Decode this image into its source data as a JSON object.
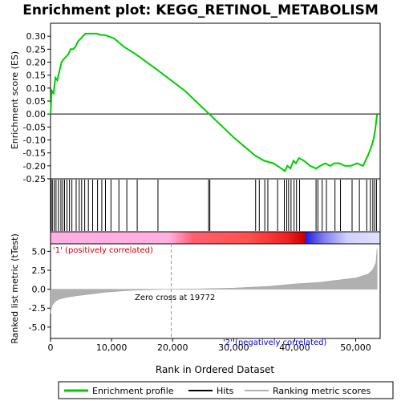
{
  "chart_data": [
    {
      "type": "line",
      "title": "Enrichment plot: KEGG_RETINOL_METABOLISM",
      "ylabel": "Enrichment score (ES)",
      "xlim": [
        0,
        54000
      ],
      "ylim": [
        -0.25,
        0.35
      ],
      "yticks": [
        -0.25,
        -0.2,
        -0.15,
        -0.1,
        -0.05,
        0.0,
        0.05,
        0.1,
        0.15,
        0.2,
        0.25,
        0.3
      ],
      "ytick_labels": [
        "-0.25",
        "-0.20",
        "-0.15",
        "-0.10",
        "-0.05",
        "0.00",
        "0.05",
        "0.10",
        "0.15",
        "0.20",
        "0.25",
        "0.30"
      ],
      "series": [
        {
          "name": "Enrichment profile",
          "color": "#00cc00",
          "x": [
            0,
            200,
            500,
            800,
            1100,
            1500,
            1800,
            2100,
            2500,
            2900,
            3300,
            3700,
            4100,
            4500,
            4900,
            5300,
            5700,
            6100,
            6500,
            7000,
            7600,
            8200,
            8800,
            9500,
            10500,
            12000,
            14000,
            17500,
            22000,
            26000,
            30000,
            33500,
            35000,
            36500,
            37500,
            38400,
            38800,
            39300,
            39800,
            40200,
            40700,
            41500,
            42500,
            43500,
            44200,
            45000,
            45800,
            46500,
            47300,
            48200,
            49200,
            50200,
            51200,
            52000,
            52500,
            52900,
            53200,
            53500
          ],
          "y": [
            0.0,
            0.09,
            0.08,
            0.14,
            0.13,
            0.17,
            0.2,
            0.21,
            0.22,
            0.23,
            0.25,
            0.25,
            0.26,
            0.28,
            0.29,
            0.3,
            0.31,
            0.31,
            0.31,
            0.31,
            0.31,
            0.305,
            0.305,
            0.3,
            0.29,
            0.26,
            0.23,
            0.17,
            0.09,
            0.0,
            -0.09,
            -0.16,
            -0.18,
            -0.19,
            -0.205,
            -0.22,
            -0.2,
            -0.21,
            -0.18,
            -0.19,
            -0.17,
            -0.18,
            -0.2,
            -0.21,
            -0.2,
            -0.19,
            -0.2,
            -0.19,
            -0.19,
            -0.2,
            -0.2,
            -0.19,
            -0.2,
            -0.16,
            -0.13,
            -0.1,
            -0.06,
            0.0
          ]
        }
      ],
      "hits": [
        100,
        300,
        600,
        900,
        1300,
        1700,
        2000,
        2300,
        2700,
        3100,
        3500,
        4200,
        4700,
        5100,
        5600,
        6200,
        6900,
        7700,
        8400,
        9000,
        9900,
        11200,
        12500,
        14200,
        17600,
        25900,
        26100,
        33600,
        34200,
        35100,
        35600,
        37200,
        38300,
        38700,
        39000,
        39400,
        39900,
        40300,
        40800,
        43500,
        43800,
        44500,
        45200,
        46600,
        47500,
        49400,
        50600,
        51800,
        52400,
        52800,
        53100,
        53400
      ]
    },
    {
      "type": "area",
      "ylabel": "Ranked list metric (tTest)",
      "xlabel": "Rank in Ordered Dataset",
      "xlim": [
        0,
        54000
      ],
      "ylim": [
        -6.5,
        6.0
      ],
      "xticks": [
        0,
        10000,
        20000,
        30000,
        40000,
        50000
      ],
      "xtick_labels": [
        "0",
        "10,000",
        "20,000",
        "30,000",
        "40,000",
        "50,000"
      ],
      "yticks": [
        -5.0,
        -2.5,
        0.0,
        2.5,
        5.0
      ],
      "ytick_labels": [
        "-5.0",
        "-2.5",
        "0.0",
        "2.5",
        "5.0"
      ],
      "series": [
        {
          "name": "Ranking metric scores",
          "color": "#b0b0b0",
          "x": [
            0,
            100,
            300,
            600,
            1000,
            1500,
            2500,
            4000,
            6000,
            9000,
            13000,
            17000,
            19772,
            24000,
            30000,
            36000,
            40000,
            44000,
            47000,
            50000,
            52000,
            52800,
            53300,
            53500
          ],
          "y": [
            -3.2,
            -2.6,
            -2.1,
            -1.8,
            -1.5,
            -1.3,
            -1.1,
            -0.9,
            -0.7,
            -0.4,
            -0.15,
            -0.05,
            0.0,
            0.05,
            0.15,
            0.4,
            0.7,
            0.9,
            1.2,
            1.5,
            2.0,
            2.6,
            3.5,
            5.4
          ]
        }
      ],
      "annotations": [
        "'1' (positively correlated)",
        "Zero cross at 19772",
        "'2' (negatively correlated)"
      ]
    }
  ],
  "legend": {
    "items": [
      {
        "label": "Enrichment profile",
        "color": "#00cc00"
      },
      {
        "label": "Hits",
        "color": "#000000"
      },
      {
        "label": "Ranking metric scores",
        "color": "#b0b0b0"
      }
    ]
  },
  "colors": {
    "positive_label": "#cc0000",
    "negative_label": "#0000cc"
  }
}
